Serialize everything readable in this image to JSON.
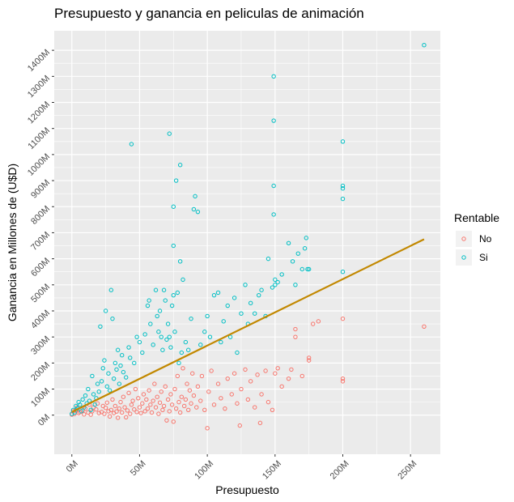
{
  "chart_data": {
    "type": "scatter",
    "title": "Presupuesto y ganancia en peliculas de animación",
    "xlabel": "Presupuesto",
    "ylabel": "Ganancia en Millones de (U$D)",
    "x_unit": "M",
    "y_unit": "M",
    "xlim": [
      -13,
      272
    ],
    "ylim": [
      -150,
      1475
    ],
    "x_ticks": [
      0,
      50,
      100,
      150,
      200,
      250
    ],
    "x_tick_labels": [
      "0M",
      "50M",
      "100M",
      "150M",
      "200M",
      "250M"
    ],
    "y_ticks": [
      0,
      100,
      200,
      300,
      400,
      500,
      600,
      700,
      800,
      900,
      1000,
      1100,
      1200,
      1300,
      1400
    ],
    "y_tick_labels": [
      "0M",
      "100M",
      "200M",
      "300M",
      "400M",
      "500M",
      "600M",
      "700M",
      "800M",
      "900M",
      "1000M",
      "1100M",
      "1200M",
      "1300M",
      "1400M"
    ],
    "grid": true,
    "legend": {
      "title": "Rentable",
      "placement": "right",
      "entries": [
        "No",
        "Si"
      ]
    },
    "trend_line": {
      "x": [
        0,
        260
      ],
      "y": [
        12,
        675
      ],
      "color": "#c28800"
    },
    "series": [
      {
        "name": "No",
        "color": "#f8766d",
        "points": [
          [
            0,
            2
          ],
          [
            1,
            15
          ],
          [
            2,
            5
          ],
          [
            3,
            20
          ],
          [
            4,
            30
          ],
          [
            5,
            8
          ],
          [
            6,
            12
          ],
          [
            8,
            18
          ],
          [
            9,
            3
          ],
          [
            10,
            25
          ],
          [
            12,
            10
          ],
          [
            13,
            40
          ],
          [
            14,
            2
          ],
          [
            15,
            15
          ],
          [
            16,
            30
          ],
          [
            18,
            22
          ],
          [
            19,
            45
          ],
          [
            20,
            8
          ],
          [
            22,
            12
          ],
          [
            23,
            35
          ],
          [
            24,
            5
          ],
          [
            25,
            28
          ],
          [
            26,
            48
          ],
          [
            27,
            15
          ],
          [
            28,
            -5
          ],
          [
            29,
            20
          ],
          [
            30,
            60
          ],
          [
            31,
            8
          ],
          [
            32,
            35
          ],
          [
            33,
            14
          ],
          [
            34,
            -10
          ],
          [
            35,
            25
          ],
          [
            36,
            50
          ],
          [
            37,
            10
          ],
          [
            38,
            70
          ],
          [
            39,
            30
          ],
          [
            40,
            -8
          ],
          [
            41,
            18
          ],
          [
            42,
            85
          ],
          [
            43,
            5
          ],
          [
            44,
            40
          ],
          [
            45,
            55
          ],
          [
            46,
            22
          ],
          [
            47,
            100
          ],
          [
            48,
            12
          ],
          [
            49,
            65
          ],
          [
            50,
            30
          ],
          [
            51,
            8
          ],
          [
            52,
            45
          ],
          [
            53,
            80
          ],
          [
            54,
            15
          ],
          [
            55,
            60
          ],
          [
            56,
            25
          ],
          [
            57,
            95
          ],
          [
            58,
            40
          ],
          [
            59,
            10
          ],
          [
            60,
            55
          ],
          [
            61,
            120
          ],
          [
            62,
            30
          ],
          [
            63,
            70
          ],
          [
            64,
            5
          ],
          [
            65,
            48
          ],
          [
            66,
            90
          ],
          [
            67,
            20
          ],
          [
            68,
            35
          ],
          [
            69,
            110
          ],
          [
            70,
            -20
          ],
          [
            71,
            60
          ],
          [
            72,
            15
          ],
          [
            73,
            80
          ],
          [
            74,
            40
          ],
          [
            75,
            -25
          ],
          [
            76,
            100
          ],
          [
            77,
            25
          ],
          [
            78,
            150
          ],
          [
            79,
            50
          ],
          [
            80,
            10
          ],
          [
            81,
            70
          ],
          [
            82,
            180
          ],
          [
            83,
            35
          ],
          [
            84,
            60
          ],
          [
            85,
            120
          ],
          [
            86,
            20
          ],
          [
            87,
            95
          ],
          [
            88,
            45
          ],
          [
            89,
            160
          ],
          [
            90,
            75
          ],
          [
            92,
            30
          ],
          [
            93,
            110
          ],
          [
            95,
            55
          ],
          [
            96,
            150
          ],
          [
            98,
            20
          ],
          [
            100,
            -50
          ],
          [
            101,
            90
          ],
          [
            103,
            170
          ],
          [
            105,
            40
          ],
          [
            108,
            120
          ],
          [
            110,
            65
          ],
          [
            113,
            25
          ],
          [
            115,
            140
          ],
          [
            118,
            80
          ],
          [
            120,
            160
          ],
          [
            122,
            45
          ],
          [
            124,
            -40
          ],
          [
            125,
            100
          ],
          [
            128,
            175
          ],
          [
            130,
            60
          ],
          [
            132,
            130
          ],
          [
            135,
            30
          ],
          [
            137,
            155
          ],
          [
            139,
            -30
          ],
          [
            140,
            80
          ],
          [
            143,
            170
          ],
          [
            145,
            50
          ],
          [
            148,
            20
          ],
          [
            150,
            160
          ],
          [
            152,
            180
          ],
          [
            155,
            110
          ],
          [
            160,
            140
          ],
          [
            162,
            175
          ],
          [
            165,
            300
          ],
          [
            165,
            330
          ],
          [
            170,
            150
          ],
          [
            175,
            210
          ],
          [
            175,
            220
          ],
          [
            178,
            350
          ],
          [
            182,
            360
          ],
          [
            200,
            130
          ],
          [
            200,
            140
          ],
          [
            200,
            370
          ],
          [
            260,
            340
          ]
        ]
      },
      {
        "name": "Si",
        "color": "#00bfc4",
        "points": [
          [
            0,
            5
          ],
          [
            1,
            20
          ],
          [
            2,
            10
          ],
          [
            3,
            35
          ],
          [
            4,
            25
          ],
          [
            5,
            50
          ],
          [
            6,
            40
          ],
          [
            7,
            15
          ],
          [
            8,
            60
          ],
          [
            9,
            30
          ],
          [
            10,
            75
          ],
          [
            11,
            45
          ],
          [
            12,
            100
          ],
          [
            13,
            55
          ],
          [
            14,
            20
          ],
          [
            15,
            150
          ],
          [
            16,
            80
          ],
          [
            17,
            40
          ],
          [
            18,
            65
          ],
          [
            19,
            120
          ],
          [
            20,
            90
          ],
          [
            21,
            340
          ],
          [
            22,
            130
          ],
          [
            23,
            180
          ],
          [
            24,
            210
          ],
          [
            25,
            400
          ],
          [
            26,
            110
          ],
          [
            27,
            160
          ],
          [
            28,
            95
          ],
          [
            29,
            480
          ],
          [
            30,
            370
          ],
          [
            31,
            140
          ],
          [
            32,
            200
          ],
          [
            33,
            175
          ],
          [
            34,
            250
          ],
          [
            35,
            120
          ],
          [
            36,
            190
          ],
          [
            37,
            230
          ],
          [
            38,
            165
          ],
          [
            40,
            145
          ],
          [
            42,
            260
          ],
          [
            43,
            220
          ],
          [
            44,
            1040
          ],
          [
            46,
            200
          ],
          [
            48,
            300
          ],
          [
            50,
            280
          ],
          [
            52,
            240
          ],
          [
            54,
            310
          ],
          [
            56,
            420
          ],
          [
            57,
            440
          ],
          [
            58,
            350
          ],
          [
            60,
            270
          ],
          [
            62,
            480
          ],
          [
            63,
            380
          ],
          [
            64,
            320
          ],
          [
            65,
            400
          ],
          [
            66,
            300
          ],
          [
            67,
            250
          ],
          [
            68,
            480
          ],
          [
            69,
            440
          ],
          [
            70,
            290
          ],
          [
            71,
            350
          ],
          [
            72,
            1080
          ],
          [
            72,
            300
          ],
          [
            73,
            260
          ],
          [
            74,
            420
          ],
          [
            75,
            460
          ],
          [
            75,
            650
          ],
          [
            75,
            800
          ],
          [
            76,
            320
          ],
          [
            77,
            900
          ],
          [
            78,
            470
          ],
          [
            79,
            200
          ],
          [
            80,
            960
          ],
          [
            80,
            590
          ],
          [
            81,
            240
          ],
          [
            82,
            520
          ],
          [
            84,
            280
          ],
          [
            86,
            250
          ],
          [
            88,
            370
          ],
          [
            90,
            790
          ],
          [
            91,
            840
          ],
          [
            93,
            780
          ],
          [
            95,
            270
          ],
          [
            98,
            320
          ],
          [
            100,
            380
          ],
          [
            102,
            300
          ],
          [
            105,
            460
          ],
          [
            108,
            470
          ],
          [
            110,
            280
          ],
          [
            112,
            360
          ],
          [
            115,
            420
          ],
          [
            117,
            300
          ],
          [
            120,
            450
          ],
          [
            122,
            240
          ],
          [
            125,
            390
          ],
          [
            128,
            500
          ],
          [
            130,
            350
          ],
          [
            132,
            430
          ],
          [
            135,
            390
          ],
          [
            138,
            460
          ],
          [
            140,
            480
          ],
          [
            143,
            380
          ],
          [
            145,
            600
          ],
          [
            148,
            490
          ],
          [
            149,
            1300
          ],
          [
            149,
            1130
          ],
          [
            149,
            880
          ],
          [
            149,
            770
          ],
          [
            150,
            500
          ],
          [
            150,
            520
          ],
          [
            152,
            510
          ],
          [
            155,
            540
          ],
          [
            160,
            660
          ],
          [
            163,
            590
          ],
          [
            165,
            500
          ],
          [
            167,
            620
          ],
          [
            170,
            560
          ],
          [
            172,
            640
          ],
          [
            173,
            680
          ],
          [
            174,
            560
          ],
          [
            175,
            560
          ],
          [
            200,
            1050
          ],
          [
            200,
            880
          ],
          [
            200,
            870
          ],
          [
            200,
            830
          ],
          [
            200,
            550
          ],
          [
            260,
            1420
          ]
        ]
      }
    ]
  }
}
